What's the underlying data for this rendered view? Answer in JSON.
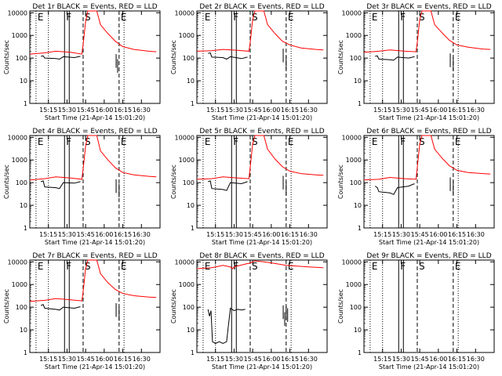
{
  "figure": {
    "xlabel": "Start Time (21-Apr-14 15:01:20)",
    "ylabel": "Counts/sec",
    "x_ticks": [
      "15:15",
      "15:30",
      "15:45",
      "16:00",
      "16:15",
      "16:30"
    ],
    "y_ticks": [
      "1",
      "10",
      "100",
      "1000",
      "10000"
    ],
    "x_range_minutes": [
      15.0,
      16.75
    ],
    "y_range_log": [
      1,
      12000
    ],
    "colors": {
      "events": "#000000",
      "lld": "#ff0000",
      "axes": "#000000"
    },
    "markers": [
      {
        "label": "E",
        "time": "15:05",
        "style": "dotted"
      },
      {
        "label": "F",
        "time": "15:28",
        "style": "solid"
      },
      {
        "label": "S",
        "time": "15:43",
        "style": "dashed"
      },
      {
        "label": "E",
        "time": "16:12",
        "style": "dashed"
      },
      {
        "label": "",
        "time": "15:15",
        "style": "dotted"
      },
      {
        "label": "",
        "time": "16:16",
        "style": "dotted"
      }
    ]
  },
  "chart_data": [
    {
      "type": "line",
      "title": "Det 1r BLACK = Events, RED = LLD",
      "series": [
        {
          "name": "Events",
          "color": "#000000",
          "points": [
            [
              15.15,
              120
            ],
            [
              15.18,
              125
            ],
            [
              15.2,
              100
            ],
            [
              15.35,
              95
            ],
            [
              15.4,
              90
            ],
            [
              15.45,
              115
            ],
            [
              15.6,
              105
            ],
            [
              15.68,
              120
            ]
          ],
          "spikes": [
            [
              16.16,
              150
            ],
            [
              16.18,
              90
            ]
          ]
        },
        {
          "name": "LLD",
          "color": "#ff0000",
          "points": [
            [
              15.0,
              150
            ],
            [
              15.2,
              170
            ],
            [
              15.35,
              200
            ],
            [
              15.55,
              180
            ],
            [
              15.7,
              150
            ],
            [
              15.72,
              500
            ],
            [
              15.75,
              4000
            ],
            [
              15.78,
              12000
            ],
            [
              15.9,
              12000
            ],
            [
              15.95,
              3000
            ],
            [
              16.05,
              1200
            ],
            [
              16.15,
              550
            ],
            [
              16.25,
              320
            ],
            [
              16.4,
              240
            ],
            [
              16.6,
              200
            ],
            [
              16.7,
              190
            ]
          ]
        }
      ]
    },
    {
      "type": "line",
      "title": "Det 2r BLACK = Events, RED = LLD",
      "series": [
        {
          "name": "Events",
          "color": "#000000",
          "points": [
            [
              15.15,
              160
            ],
            [
              15.18,
              170
            ],
            [
              15.2,
              110
            ],
            [
              15.35,
              105
            ],
            [
              15.4,
              90
            ],
            [
              15.45,
              115
            ],
            [
              15.6,
              95
            ],
            [
              15.68,
              110
            ]
          ],
          "spikes": [
            [
              16.16,
              260
            ],
            [
              16.2,
              120
            ]
          ]
        },
        {
          "name": "LLD",
          "color": "#ff0000",
          "points": [
            [
              15.0,
              200
            ],
            [
              15.2,
              210
            ],
            [
              15.35,
              240
            ],
            [
              15.55,
              220
            ],
            [
              15.7,
              200
            ],
            [
              15.72,
              600
            ],
            [
              15.75,
              5000
            ],
            [
              15.78,
              12000
            ],
            [
              15.9,
              12000
            ],
            [
              15.95,
              3000
            ],
            [
              16.05,
              1200
            ],
            [
              16.15,
              550
            ],
            [
              16.25,
              380
            ],
            [
              16.4,
              280
            ],
            [
              16.6,
              240
            ],
            [
              16.7,
              230
            ]
          ]
        }
      ]
    },
    {
      "type": "line",
      "title": "Det 3r BLACK = Events, RED = LLD",
      "series": [
        {
          "name": "Events",
          "color": "#000000",
          "points": [
            [
              15.15,
              120
            ],
            [
              15.18,
              125
            ],
            [
              15.2,
              90
            ],
            [
              15.35,
              85
            ],
            [
              15.4,
              80
            ],
            [
              15.45,
              110
            ],
            [
              15.6,
              100
            ],
            [
              15.68,
              115
            ]
          ],
          "spikes": [
            [
              16.16,
              160
            ],
            [
              16.2,
              110
            ]
          ]
        },
        {
          "name": "LLD",
          "color": "#ff0000",
          "points": [
            [
              15.0,
              180
            ],
            [
              15.2,
              200
            ],
            [
              15.35,
              230
            ],
            [
              15.55,
              200
            ],
            [
              15.7,
              190
            ],
            [
              15.72,
              600
            ],
            [
              15.75,
              5000
            ],
            [
              15.78,
              12000
            ],
            [
              15.9,
              12000
            ],
            [
              15.95,
              3000
            ],
            [
              16.05,
              1300
            ],
            [
              16.15,
              600
            ],
            [
              16.25,
              380
            ],
            [
              16.4,
              300
            ],
            [
              16.6,
              250
            ],
            [
              16.7,
              240
            ]
          ]
        }
      ]
    },
    {
      "type": "line",
      "title": "Det 4r BLACK = Events, RED = LLD",
      "series": [
        {
          "name": "Events",
          "color": "#000000",
          "points": [
            [
              15.15,
              110
            ],
            [
              15.18,
              120
            ],
            [
              15.2,
              65
            ],
            [
              15.35,
              60
            ],
            [
              15.4,
              55
            ],
            [
              15.45,
              100
            ],
            [
              15.6,
              95
            ],
            [
              15.68,
              110
            ]
          ],
          "spikes": [
            [
              16.16,
              140
            ],
            [
              16.2,
              90
            ]
          ]
        },
        {
          "name": "LLD",
          "color": "#ff0000",
          "points": [
            [
              15.0,
              130
            ],
            [
              15.2,
              150
            ],
            [
              15.35,
              180
            ],
            [
              15.55,
              160
            ],
            [
              15.7,
              140
            ],
            [
              15.72,
              500
            ],
            [
              15.75,
              4000
            ],
            [
              15.78,
              12000
            ],
            [
              15.9,
              12000
            ],
            [
              15.95,
              2500
            ],
            [
              16.05,
              1000
            ],
            [
              16.15,
              450
            ],
            [
              16.25,
              280
            ],
            [
              16.4,
              220
            ],
            [
              16.6,
              190
            ],
            [
              16.7,
              180
            ]
          ]
        }
      ]
    },
    {
      "type": "line",
      "title": "Det 5r BLACK = Events, RED = LLD",
      "series": [
        {
          "name": "Events",
          "color": "#000000",
          "points": [
            [
              15.15,
              110
            ],
            [
              15.18,
              120
            ],
            [
              15.2,
              55
            ],
            [
              15.35,
              50
            ],
            [
              15.4,
              45
            ],
            [
              15.45,
              100
            ],
            [
              15.6,
              90
            ],
            [
              15.68,
              110
            ]
          ],
          "spikes": [
            [
              16.16,
              200
            ],
            [
              16.2,
              110
            ]
          ]
        },
        {
          "name": "LLD",
          "color": "#ff0000",
          "points": [
            [
              15.0,
              140
            ],
            [
              15.2,
              150
            ],
            [
              15.35,
              180
            ],
            [
              15.55,
              160
            ],
            [
              15.7,
              150
            ],
            [
              15.72,
              600
            ],
            [
              15.75,
              5000
            ],
            [
              15.78,
              12000
            ],
            [
              15.9,
              12000
            ],
            [
              15.95,
              3000
            ],
            [
              16.05,
              1100
            ],
            [
              16.15,
              500
            ],
            [
              16.25,
              320
            ],
            [
              16.4,
              250
            ],
            [
              16.6,
              220
            ],
            [
              16.7,
              210
            ]
          ]
        }
      ]
    },
    {
      "type": "line",
      "title": "Det 6r BLACK = Events, RED = LLD",
      "series": [
        {
          "name": "Events",
          "color": "#000000",
          "points": [
            [
              15.15,
              70
            ],
            [
              15.18,
              60
            ],
            [
              15.2,
              40
            ],
            [
              15.35,
              35
            ],
            [
              15.4,
              30
            ],
            [
              15.45,
              60
            ],
            [
              15.6,
              70
            ],
            [
              15.68,
              90
            ]
          ],
          "spikes": [
            [
              16.16,
              170
            ],
            [
              16.2,
              120
            ]
          ]
        },
        {
          "name": "LLD",
          "color": "#ff0000",
          "points": [
            [
              15.0,
              130
            ],
            [
              15.2,
              140
            ],
            [
              15.35,
              170
            ],
            [
              15.55,
              150
            ],
            [
              15.7,
              140
            ],
            [
              15.72,
              600
            ],
            [
              15.75,
              5000
            ],
            [
              15.78,
              12000
            ],
            [
              15.9,
              12000
            ],
            [
              15.95,
              3000
            ],
            [
              16.05,
              1200
            ],
            [
              16.15,
              550
            ],
            [
              16.25,
              350
            ],
            [
              16.4,
              280
            ],
            [
              16.6,
              250
            ],
            [
              16.7,
              240
            ]
          ]
        }
      ]
    },
    {
      "type": "line",
      "title": "Det 7r BLACK = Events, RED = LLD",
      "series": [
        {
          "name": "Events",
          "color": "#000000",
          "points": [
            [
              15.15,
              120
            ],
            [
              15.18,
              130
            ],
            [
              15.2,
              90
            ],
            [
              15.35,
              80
            ],
            [
              15.4,
              75
            ],
            [
              15.45,
              100
            ],
            [
              15.6,
              90
            ],
            [
              15.68,
              105
            ]
          ],
          "spikes": [
            [
              16.16,
              150
            ],
            [
              16.2,
              100
            ]
          ]
        },
        {
          "name": "LLD",
          "color": "#ff0000",
          "points": [
            [
              15.0,
              180
            ],
            [
              15.2,
              200
            ],
            [
              15.35,
              240
            ],
            [
              15.55,
              210
            ],
            [
              15.7,
              190
            ],
            [
              15.72,
              600
            ],
            [
              15.75,
              5000
            ],
            [
              15.78,
              12000
            ],
            [
              15.9,
              12000
            ],
            [
              15.95,
              3000
            ],
            [
              16.05,
              1200
            ],
            [
              16.15,
              600
            ],
            [
              16.25,
              400
            ],
            [
              16.4,
              320
            ],
            [
              16.6,
              280
            ],
            [
              16.7,
              270
            ]
          ]
        }
      ]
    },
    {
      "type": "line",
      "title": "Det 8r BLACK = Events, RED = LLD",
      "series": [
        {
          "name": "Events",
          "color": "#000000",
          "points": [
            [
              15.15,
              80
            ],
            [
              15.17,
              40
            ],
            [
              15.19,
              70
            ],
            [
              15.21,
              3
            ],
            [
              15.25,
              2.5
            ],
            [
              15.3,
              3
            ],
            [
              15.35,
              2.5
            ],
            [
              15.4,
              3
            ],
            [
              15.45,
              90
            ],
            [
              15.5,
              70
            ],
            [
              15.55,
              80
            ],
            [
              15.6,
              75
            ],
            [
              15.65,
              80
            ]
          ],
          "spikes": [
            [
              16.16,
              120
            ],
            [
              16.18,
              60
            ],
            [
              16.2,
              110
            ],
            [
              16.22,
              90
            ]
          ]
        },
        {
          "name": "LLD",
          "color": "#ff0000",
          "points": [
            [
              15.0,
              5000
            ],
            [
              15.2,
              5500
            ],
            [
              15.35,
              7000
            ],
            [
              15.45,
              6000
            ],
            [
              15.48,
              5000
            ],
            [
              15.5,
              6000
            ],
            [
              15.65,
              8000
            ],
            [
              15.72,
              9000
            ],
            [
              15.78,
              11000
            ],
            [
              15.9,
              10000
            ],
            [
              16.0,
              9000
            ],
            [
              16.1,
              8000
            ],
            [
              16.2,
              7000
            ],
            [
              16.35,
              6500
            ],
            [
              16.5,
              6000
            ],
            [
              16.7,
              5500
            ]
          ]
        }
      ]
    },
    {
      "type": "line",
      "title": "Det 9r BLACK = Events, RED = LLD",
      "series": []
    }
  ]
}
